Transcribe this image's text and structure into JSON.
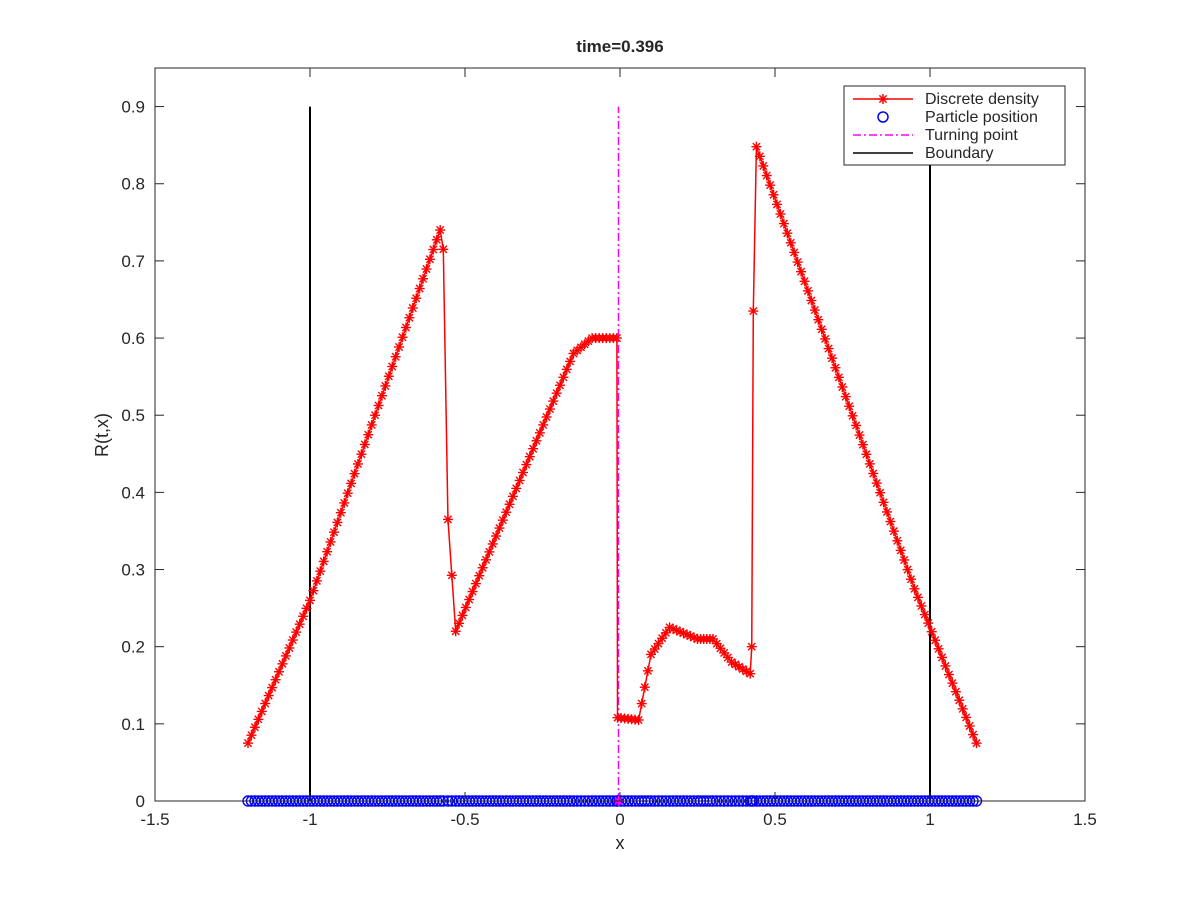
{
  "chart_data": {
    "type": "line",
    "title": "time=0.396",
    "xlabel": "x",
    "ylabel": "R(t,x)",
    "xlim": [
      -1.5,
      1.5
    ],
    "ylim": [
      0,
      0.95
    ],
    "xticks": [
      -1.5,
      -1,
      -0.5,
      0,
      0.5,
      1,
      1.5
    ],
    "xtick_labels": [
      "-1.5",
      "-1",
      "-0.5",
      "0",
      "0.5",
      "1",
      "1.5"
    ],
    "yticks": [
      0,
      0.1,
      0.2,
      0.3,
      0.4,
      0.5,
      0.6,
      0.7,
      0.8,
      0.9
    ],
    "ytick_labels": [
      "0",
      "0.1",
      "0.2",
      "0.3",
      "0.4",
      "0.5",
      "0.6",
      "0.7",
      "0.8",
      "0.9"
    ],
    "grid": false,
    "legend": {
      "placement": "top-right",
      "entries": [
        "Discrete density",
        "Particle position",
        "Turning point",
        "Boundary"
      ]
    },
    "colors": {
      "density": "#ff0000",
      "particles": "#0000ff",
      "turning": "#ff00ff",
      "boundary": "#000000"
    },
    "density_anchors": {
      "x": [
        -1.2,
        -1.0,
        -0.58,
        -0.57,
        -0.555,
        -0.53,
        -0.15,
        -0.09,
        -0.01,
        -0.008,
        0.06,
        0.1,
        0.16,
        0.25,
        0.3,
        0.36,
        0.42,
        0.425,
        0.43,
        0.44,
        0.95,
        1.15
      ],
      "y": [
        0.075,
        0.26,
        0.74,
        0.715,
        0.365,
        0.22,
        0.58,
        0.6,
        0.6,
        0.108,
        0.105,
        0.19,
        0.225,
        0.21,
        0.21,
        0.18,
        0.165,
        0.2,
        0.635,
        0.848,
        0.275,
        0.075
      ]
    },
    "turning_point": {
      "x": -0.005,
      "y": [
        0,
        0.9
      ]
    },
    "boundaries": [
      {
        "x": -1,
        "y": [
          0,
          0.9
        ]
      },
      {
        "x": 1,
        "y": [
          0,
          0.9
        ]
      }
    ]
  }
}
